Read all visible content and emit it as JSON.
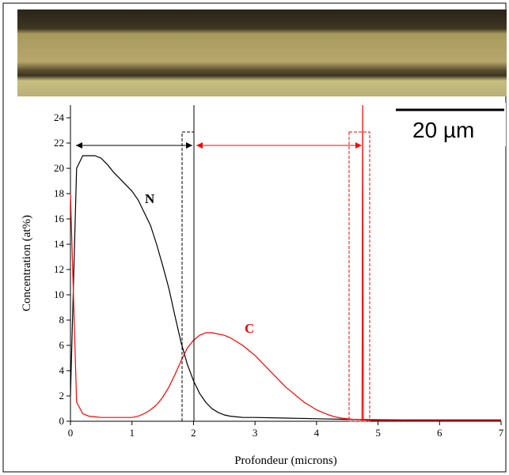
{
  "chart_data": {
    "type": "line",
    "x_label": "Profondeur (microns)",
    "y_label": "Concentration (at%)",
    "xlim": [
      0,
      7
    ],
    "xticks": [
      0,
      1,
      2,
      3,
      4,
      5,
      6,
      7
    ],
    "ylim": [
      0,
      25
    ],
    "yticks": [
      0,
      2,
      4,
      6,
      8,
      10,
      12,
      14,
      16,
      18,
      20,
      22,
      24
    ],
    "annotations": [
      "N",
      "C",
      "20 µm"
    ],
    "series": [
      {
        "name": "N",
        "color": "#000000",
        "x": [
          0,
          0.1,
          0.2,
          0.3,
          0.4,
          0.5,
          0.6,
          0.7,
          0.8,
          0.9,
          1.0,
          1.1,
          1.2,
          1.3,
          1.4,
          1.5,
          1.6,
          1.7,
          1.8,
          1.9,
          2.0,
          2.1,
          2.2,
          2.3,
          2.4,
          2.5,
          2.6,
          2.7,
          2.8,
          2.9,
          3.0,
          3.5,
          4.0,
          4.5,
          5.0,
          5.5,
          6.0,
          6.5,
          7.0
        ],
        "values": [
          2,
          20,
          21,
          21,
          21,
          20.8,
          20.3,
          19.7,
          19.2,
          18.7,
          18.2,
          17.5,
          16.5,
          15.5,
          14,
          12.3,
          10.5,
          8.3,
          6.2,
          4.5,
          3.2,
          2.2,
          1.5,
          1.0,
          0.7,
          0.5,
          0.4,
          0.35,
          0.3,
          0.3,
          0.3,
          0.25,
          0.2,
          0.15,
          0.12,
          0.1,
          0.1,
          0.1,
          0.1
        ]
      },
      {
        "name": "C",
        "color": "#ff0000",
        "x": [
          0,
          0.1,
          0.2,
          0.3,
          0.4,
          0.5,
          0.6,
          0.7,
          0.8,
          0.9,
          1.0,
          1.1,
          1.2,
          1.3,
          1.4,
          1.5,
          1.6,
          1.7,
          1.8,
          1.9,
          2.0,
          2.1,
          2.2,
          2.3,
          2.4,
          2.5,
          2.6,
          2.7,
          2.8,
          2.9,
          3.0,
          3.1,
          3.2,
          3.3,
          3.4,
          3.5,
          3.6,
          3.7,
          3.8,
          3.9,
          4.0,
          4.1,
          4.2,
          4.3,
          4.4,
          4.5,
          4.6,
          4.7,
          4.74,
          4.75,
          4.76,
          5.0,
          5.5,
          6.0,
          6.5,
          7.0
        ],
        "values": [
          18,
          1.5,
          0.6,
          0.4,
          0.35,
          0.3,
          0.3,
          0.3,
          0.3,
          0.3,
          0.3,
          0.4,
          0.6,
          0.9,
          1.3,
          1.9,
          2.7,
          3.7,
          4.8,
          5.8,
          6.4,
          6.8,
          7.0,
          7.0,
          6.9,
          6.8,
          6.6,
          6.3,
          6.0,
          5.6,
          5.2,
          4.7,
          4.2,
          3.7,
          3.2,
          2.7,
          2.3,
          1.9,
          1.5,
          1.2,
          0.9,
          0.7,
          0.5,
          0.35,
          0.25,
          0.2,
          0.15,
          0.12,
          0.1,
          25,
          0.1,
          0.05,
          0.05,
          0.05,
          0.05,
          0.05
        ]
      }
    ]
  }
}
